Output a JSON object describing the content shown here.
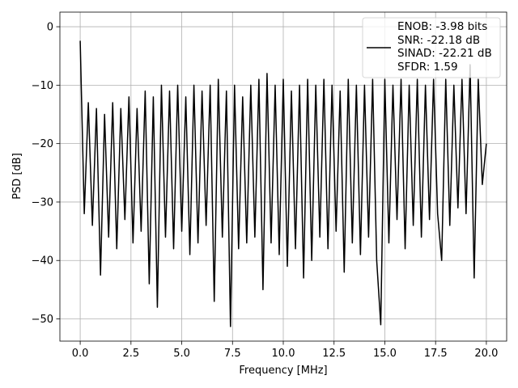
{
  "chart_data": {
    "type": "line",
    "xlabel": "Frequency [MHz]",
    "ylabel": "PSD [dB]",
    "x": [
      0,
      0.2,
      0.4,
      0.6,
      0.8,
      1.0,
      1.2,
      1.4,
      1.6,
      1.8,
      2.0,
      2.2,
      2.4,
      2.6,
      2.8,
      3.0,
      3.2,
      3.4,
      3.6,
      3.8,
      4.0,
      4.2,
      4.4,
      4.6,
      4.8,
      5.0,
      5.2,
      5.4,
      5.6,
      5.8,
      6.0,
      6.2,
      6.4,
      6.6,
      6.8,
      7.0,
      7.2,
      7.4,
      7.6,
      7.8,
      8.0,
      8.2,
      8.4,
      8.6,
      8.8,
      9.0,
      9.2,
      9.4,
      9.6,
      9.8,
      10.0,
      10.2,
      10.4,
      10.6,
      10.8,
      11.0,
      11.2,
      11.4,
      11.6,
      11.8,
      12.0,
      12.2,
      12.4,
      12.6,
      12.8,
      13.0,
      13.2,
      13.4,
      13.6,
      13.8,
      14.0,
      14.2,
      14.4,
      14.6,
      14.8,
      15.0,
      15.2,
      15.4,
      15.6,
      15.8,
      16.0,
      16.2,
      16.4,
      16.6,
      16.8,
      17.0,
      17.2,
      17.4,
      17.6,
      17.8,
      18.0,
      18.2,
      18.4,
      18.6,
      18.8,
      19.0,
      19.2,
      19.4,
      19.6,
      19.8,
      20.0
    ],
    "series": [
      {
        "name": "ENOB: -3.98 bits\nSNR: -22.18 dB\nSINAD: -22.21 dB\nSFDR: 1.59",
        "color": "#000000",
        "values": [
          -2.4,
          -32,
          -13,
          -34,
          -14,
          -42.5,
          -15,
          -36,
          -13,
          -38,
          -14,
          -33,
          -12,
          -37,
          -14,
          -35,
          -11,
          -44,
          -12,
          -48,
          -10,
          -36,
          -11,
          -38,
          -10,
          -35,
          -12,
          -39,
          -10,
          -37,
          -11,
          -34,
          -10,
          -47,
          -9,
          -36,
          -11,
          -51.3,
          -10,
          -38,
          -12,
          -37,
          -10,
          -36,
          -9,
          -45,
          -8,
          -37,
          -10,
          -39,
          -9,
          -41,
          -11,
          -38,
          -10,
          -43,
          -9,
          -40,
          -10,
          -36,
          -9,
          -38,
          -10,
          -35,
          -11,
          -42,
          -9,
          -37,
          -10,
          -39,
          -10,
          -36,
          -9,
          -40,
          -51,
          -9,
          -37,
          -10,
          -33,
          -9,
          -38,
          -10,
          -34,
          -9,
          -36,
          -10,
          -33,
          -9,
          -32,
          -40,
          -9,
          -34,
          -10,
          -31,
          -9,
          -32,
          -6.5,
          -43,
          -9,
          -27,
          -20
        ]
      }
    ],
    "xlim": [
      -1,
      21
    ],
    "ylim": [
      -53.8,
      2.5
    ],
    "xticks": [
      {
        "value": 0,
        "label": "0.0"
      },
      {
        "value": 2.5,
        "label": "2.5"
      },
      {
        "value": 5,
        "label": "5.0"
      },
      {
        "value": 7.5,
        "label": "7.5"
      },
      {
        "value": 10,
        "label": "10.0"
      },
      {
        "value": 12.5,
        "label": "12.5"
      },
      {
        "value": 15,
        "label": "15.0"
      },
      {
        "value": 17.5,
        "label": "17.5"
      },
      {
        "value": 20,
        "label": "20.0"
      }
    ],
    "yticks": [
      0,
      {
        "value": -10,
        "label": "−10"
      },
      {
        "value": -20,
        "label": "−20"
      },
      {
        "value": -30,
        "label": "−30"
      },
      {
        "value": -40,
        "label": "−40"
      },
      {
        "value": -50,
        "label": "−50"
      }
    ],
    "grid": true,
    "legend": "upper right"
  }
}
